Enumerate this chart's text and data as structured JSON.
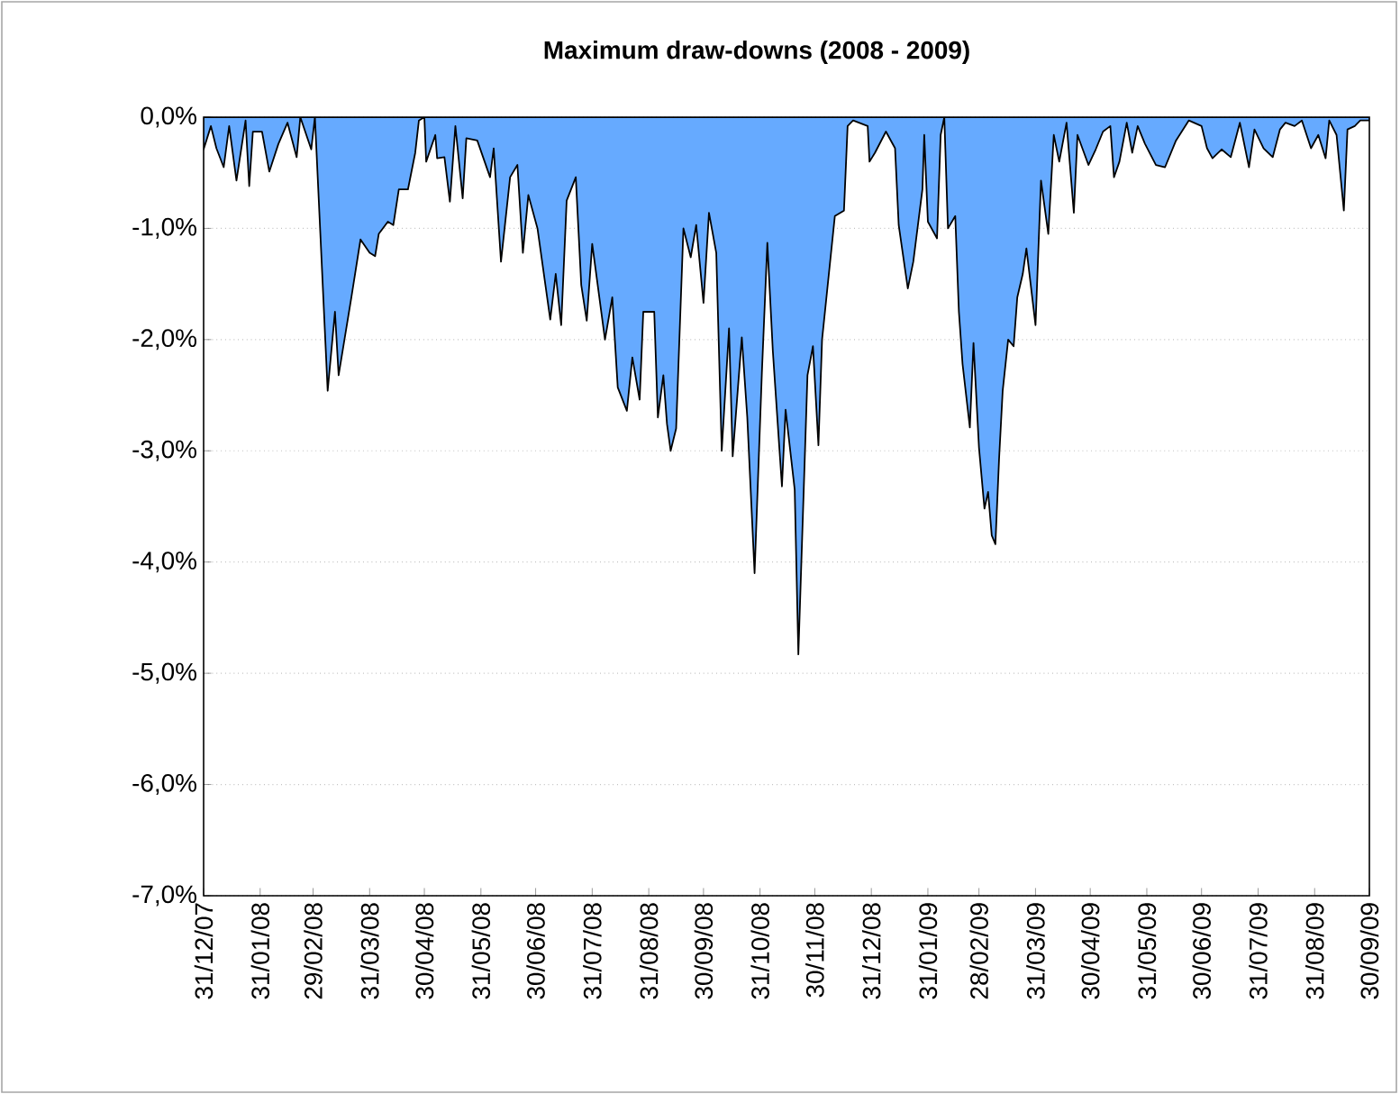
{
  "chart_data": {
    "type": "area",
    "title": "Maximum draw-downs (2008 - 2009)",
    "color": "#66aaff",
    "grid": "y",
    "xlim": [
      "2007-12-31",
      "2009-09-30"
    ],
    "xticks": [
      {
        "value": "2007-12-31",
        "label": "31/12/07"
      },
      {
        "value": "2008-01-31",
        "label": "31/01/08"
      },
      {
        "value": "2008-02-29",
        "label": "29/02/08"
      },
      {
        "value": "2008-03-31",
        "label": "31/03/08"
      },
      {
        "value": "2008-04-30",
        "label": "30/04/08"
      },
      {
        "value": "2008-05-31",
        "label": "31/05/08"
      },
      {
        "value": "2008-06-30",
        "label": "30/06/08"
      },
      {
        "value": "2008-07-31",
        "label": "31/07/08"
      },
      {
        "value": "2008-08-31",
        "label": "31/08/08"
      },
      {
        "value": "2008-09-30",
        "label": "30/09/08"
      },
      {
        "value": "2008-10-31",
        "label": "31/10/08"
      },
      {
        "value": "2008-11-30",
        "label": "30/11/08"
      },
      {
        "value": "2008-12-31",
        "label": "31/12/08"
      },
      {
        "value": "2009-01-31",
        "label": "31/01/09"
      },
      {
        "value": "2009-02-28",
        "label": "28/02/09"
      },
      {
        "value": "2009-03-31",
        "label": "31/03/09"
      },
      {
        "value": "2009-04-30",
        "label": "30/04/09"
      },
      {
        "value": "2009-05-31",
        "label": "31/05/09"
      },
      {
        "value": "2009-06-30",
        "label": "30/06/09"
      },
      {
        "value": "2009-07-31",
        "label": "31/07/09"
      },
      {
        "value": "2009-08-31",
        "label": "31/08/09"
      },
      {
        "value": "2009-09-30",
        "label": "30/09/09"
      }
    ],
    "ylim": [
      -7,
      0
    ],
    "yticks": [
      {
        "value": 0,
        "label": "0,0%"
      },
      {
        "value": -1,
        "label": "-1,0%"
      },
      {
        "value": -2,
        "label": "-2,0%"
      },
      {
        "value": -3,
        "label": "-3,0%"
      },
      {
        "value": -4,
        "label": "-4,0%"
      },
      {
        "value": -5,
        "label": "-5,0%"
      },
      {
        "value": -6,
        "label": "-6,0%"
      },
      {
        "value": -7,
        "label": "-7,0%"
      }
    ],
    "x": [
      "2007-12-31",
      "2008-01-04",
      "2008-01-07",
      "2008-01-11",
      "2008-01-14",
      "2008-01-18",
      "2008-01-23",
      "2008-01-25",
      "2008-01-27",
      "2008-02-01",
      "2008-02-05",
      "2008-02-10",
      "2008-02-15",
      "2008-02-20",
      "2008-02-22",
      "2008-02-28",
      "2008-03-01",
      "2008-03-08",
      "2008-03-12",
      "2008-03-14",
      "2008-03-21",
      "2008-03-26",
      "2008-03-31",
      "2008-04-03",
      "2008-04-05",
      "2008-04-10",
      "2008-04-13",
      "2008-04-16",
      "2008-04-21",
      "2008-04-25",
      "2008-04-27",
      "2008-04-30",
      "2008-05-01",
      "2008-05-06",
      "2008-05-07",
      "2008-05-11",
      "2008-05-14",
      "2008-05-17",
      "2008-05-21",
      "2008-05-23",
      "2008-05-29",
      "2008-06-05",
      "2008-06-07",
      "2008-06-11",
      "2008-06-16",
      "2008-06-20",
      "2008-06-23",
      "2008-06-26",
      "2008-07-01",
      "2008-07-08",
      "2008-07-11",
      "2008-07-14",
      "2008-07-17",
      "2008-07-22",
      "2008-07-25",
      "2008-07-28",
      "2008-07-31",
      "2008-08-07",
      "2008-08-11",
      "2008-08-14",
      "2008-08-19",
      "2008-08-22",
      "2008-08-26",
      "2008-08-28",
      "2008-09-03",
      "2008-09-05",
      "2008-09-08",
      "2008-09-10",
      "2008-09-12",
      "2008-09-15",
      "2008-09-19",
      "2008-09-23",
      "2008-09-26",
      "2008-09-30",
      "2008-10-03",
      "2008-10-07",
      "2008-10-10",
      "2008-10-14",
      "2008-10-16",
      "2008-10-21",
      "2008-10-24",
      "2008-10-28",
      "2008-11-01",
      "2008-11-04",
      "2008-11-07",
      "2008-11-12",
      "2008-11-14",
      "2008-11-19",
      "2008-11-21",
      "2008-11-26",
      "2008-11-29",
      "2008-12-02",
      "2008-12-04",
      "2008-12-11",
      "2008-12-16",
      "2008-12-18",
      "2008-12-21",
      "2008-12-29",
      "2008-12-30",
      "2009-01-02",
      "2009-01-08",
      "2009-01-13",
      "2009-01-15",
      "2009-01-20",
      "2009-01-23",
      "2009-01-28",
      "2009-01-29",
      "2009-01-31",
      "2009-02-05",
      "2009-02-07",
      "2009-02-09",
      "2009-02-11",
      "2009-02-15",
      "2009-02-17",
      "2009-02-19",
      "2009-02-23",
      "2009-02-25",
      "2009-02-28",
      "2009-03-03",
      "2009-03-05",
      "2009-03-07",
      "2009-03-09",
      "2009-03-11",
      "2009-03-13",
      "2009-03-16",
      "2009-03-19",
      "2009-03-21",
      "2009-03-24",
      "2009-03-26",
      "2009-03-31",
      "2009-04-03",
      "2009-04-07",
      "2009-04-10",
      "2009-04-13",
      "2009-04-17",
      "2009-04-21",
      "2009-04-23",
      "2009-04-29",
      "2009-05-03",
      "2009-05-07",
      "2009-05-11",
      "2009-05-13",
      "2009-05-16",
      "2009-05-20",
      "2009-05-23",
      "2009-05-26",
      "2009-05-30",
      "2009-06-05",
      "2009-06-10",
      "2009-06-16",
      "2009-06-23",
      "2009-06-30",
      "2009-07-03",
      "2009-07-06",
      "2009-07-11",
      "2009-07-16",
      "2009-07-21",
      "2009-07-26",
      "2009-07-29",
      "2009-08-03",
      "2009-08-08",
      "2009-08-12",
      "2009-08-15",
      "2009-08-20",
      "2009-08-24",
      "2009-08-29",
      "2009-09-02",
      "2009-09-06",
      "2009-09-08",
      "2009-09-12",
      "2009-09-16",
      "2009-09-18",
      "2009-09-22",
      "2009-09-25",
      "2009-09-30"
    ],
    "values": [
      -0.29,
      -0.08,
      -0.28,
      -0.45,
      -0.08,
      -0.57,
      -0.03,
      -0.62,
      -0.13,
      -0.13,
      -0.49,
      -0.24,
      -0.05,
      -0.36,
      0,
      -0.29,
      0,
      -2.46,
      -1.75,
      -2.32,
      -1.62,
      -1.1,
      -1.22,
      -1.25,
      -1.05,
      -0.94,
      -0.97,
      -0.65,
      -0.65,
      -0.32,
      -0.03,
      0,
      -0.4,
      -0.16,
      -0.37,
      -0.36,
      -0.76,
      -0.08,
      -0.73,
      -0.19,
      -0.21,
      -0.54,
      -0.28,
      -1.3,
      -0.54,
      -0.43,
      -1.22,
      -0.7,
      -1.0,
      -1.82,
      -1.41,
      -1.87,
      -0.75,
      -0.54,
      -1.51,
      -1.83,
      -1.14,
      -2.0,
      -1.62,
      -2.43,
      -2.64,
      -2.16,
      -2.54,
      -1.75,
      -1.75,
      -2.7,
      -2.32,
      -2.76,
      -3.0,
      -2.8,
      -1.0,
      -1.26,
      -0.97,
      -1.67,
      -0.86,
      -1.22,
      -3.0,
      -1.9,
      -3.05,
      -1.98,
      -2.7,
      -4.1,
      -2.3,
      -1.13,
      -2.1,
      -3.32,
      -2.63,
      -3.35,
      -4.83,
      -2.32,
      -2.06,
      -2.95,
      -2.0,
      -0.89,
      -0.84,
      -0.08,
      -0.03,
      -0.08,
      -0.4,
      -0.32,
      -0.13,
      -0.28,
      -0.97,
      -1.54,
      -1.3,
      -0.65,
      -0.16,
      -0.94,
      -1.09,
      -0.16,
      0,
      -1.0,
      -0.89,
      -1.75,
      -2.22,
      -2.79,
      -2.03,
      -2.97,
      -3.52,
      -3.37,
      -3.76,
      -3.84,
      -3.08,
      -2.46,
      -2.0,
      -2.06,
      -1.62,
      -1.41,
      -1.18,
      -1.87,
      -0.57,
      -1.05,
      -0.16,
      -0.4,
      -0.05,
      -0.86,
      -0.16,
      -0.43,
      -0.29,
      -0.13,
      -0.08,
      -0.54,
      -0.4,
      -0.05,
      -0.32,
      -0.08,
      -0.24,
      -0.43,
      -0.45,
      -0.21,
      -0.03,
      -0.08,
      -0.28,
      -0.37,
      -0.29,
      -0.36,
      -0.05,
      -0.45,
      -0.11,
      -0.28,
      -0.36,
      -0.11,
      -0.05,
      -0.08,
      -0.03,
      -0.28,
      -0.16,
      -0.37,
      -0.03,
      -0.16,
      -0.84,
      -0.11,
      -0.08,
      -0.03,
      -0.03
    ]
  }
}
